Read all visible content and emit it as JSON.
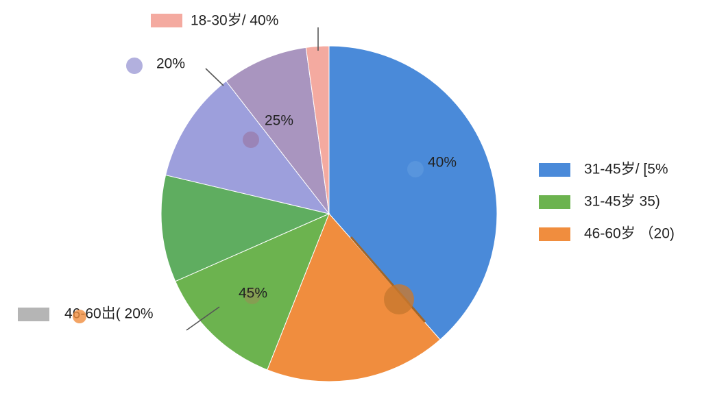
{
  "chart_data": {
    "type": "pie",
    "values": [
      38.5,
      17.5,
      12.4,
      10.3,
      10.8,
      8.3,
      2.2
    ],
    "colors": [
      "#4a8ad9",
      "#f08d3e",
      "#6cb34f",
      "#5fad60",
      "#9d9fdc",
      "#a995bf",
      "#f4aaa0"
    ],
    "annotations": [
      {
        "text": "18-30岁/ 40%",
        "color": "#f4aaa0"
      },
      {
        "text": "20%",
        "color": "#a5a2d8"
      },
      {
        "text": "25%",
        "color": "#9a7fb0"
      },
      {
        "text": "40%",
        "color": "#5b96dd"
      },
      {
        "text": "45%",
        "color": "#8a9a52"
      },
      {
        "text": "46-60岀( 20%",
        "color": "#b5b5b5"
      }
    ],
    "legend": [
      {
        "name": "31-45岁/ [5%",
        "color": "#4a8ad9"
      },
      {
        "name": "31-45岁    35)",
        "color": "#6cb34f"
      },
      {
        "name": "46-60岁 （20)",
        "color": "#f08d3e"
      }
    ]
  }
}
